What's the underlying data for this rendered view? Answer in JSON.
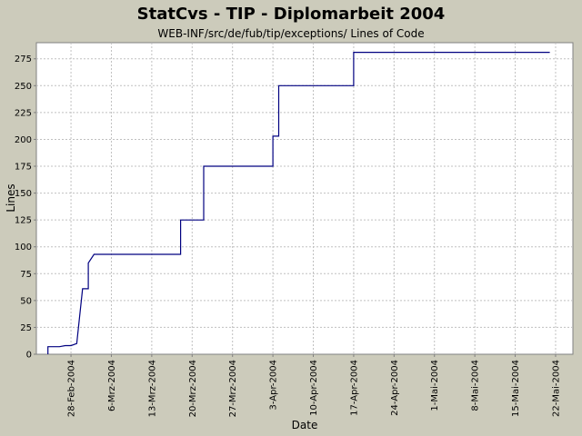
{
  "chart_data": {
    "type": "line",
    "title": "StatCvs - TIP - Diplomarbeit 2004",
    "subtitle": "WEB-INF/src/de/fub/tip/exceptions/ Lines of Code",
    "xlabel": "Date",
    "ylabel": "Lines",
    "xlim": [
      "2004-02-22",
      "2004-05-25"
    ],
    "ylim": [
      0,
      290
    ],
    "grid": true,
    "step": true,
    "line_color": "#000080",
    "y_ticks": [
      0,
      25,
      50,
      75,
      100,
      125,
      150,
      175,
      200,
      225,
      250,
      275
    ],
    "x_ticks": [
      {
        "date": "2004-02-28",
        "label": "28-Feb-2004"
      },
      {
        "date": "2004-03-06",
        "label": "6-Mrz-2004"
      },
      {
        "date": "2004-03-13",
        "label": "13-Mrz-2004"
      },
      {
        "date": "2004-03-20",
        "label": "20-Mrz-2004"
      },
      {
        "date": "2004-03-27",
        "label": "27-Mrz-2004"
      },
      {
        "date": "2004-04-03",
        "label": "3-Apr-2004"
      },
      {
        "date": "2004-04-10",
        "label": "10-Apr-2004"
      },
      {
        "date": "2004-04-17",
        "label": "17-Apr-2004"
      },
      {
        "date": "2004-04-24",
        "label": "24-Apr-2004"
      },
      {
        "date": "2004-05-01",
        "label": "1-Mai-2004"
      },
      {
        "date": "2004-05-08",
        "label": "8-Mai-2004"
      },
      {
        "date": "2004-05-15",
        "label": "15-Mai-2004"
      },
      {
        "date": "2004-05-22",
        "label": "22-Mai-2004"
      }
    ],
    "series": [
      {
        "points": [
          {
            "x": "2004-02-24",
            "y": 0
          },
          {
            "x": "2004-02-24",
            "y": 7
          },
          {
            "x": "2004-02-26",
            "y": 7
          },
          {
            "x": "2004-02-27",
            "y": 8
          },
          {
            "x": "2004-02-28",
            "y": 8
          },
          {
            "x": "2004-02-29",
            "y": 10
          },
          {
            "x": "2004-03-01",
            "y": 61
          },
          {
            "x": "2004-03-02",
            "y": 61
          },
          {
            "x": "2004-03-02",
            "y": 85
          },
          {
            "x": "2004-03-03",
            "y": 93
          },
          {
            "x": "2004-03-18",
            "y": 93
          },
          {
            "x": "2004-03-18",
            "y": 125
          },
          {
            "x": "2004-03-22",
            "y": 125
          },
          {
            "x": "2004-03-22",
            "y": 175
          },
          {
            "x": "2004-04-03",
            "y": 175
          },
          {
            "x": "2004-04-03",
            "y": 203
          },
          {
            "x": "2004-04-04",
            "y": 203
          },
          {
            "x": "2004-04-04",
            "y": 250
          },
          {
            "x": "2004-04-17",
            "y": 250
          },
          {
            "x": "2004-04-17",
            "y": 281
          },
          {
            "x": "2004-05-21",
            "y": 281
          }
        ]
      }
    ]
  }
}
